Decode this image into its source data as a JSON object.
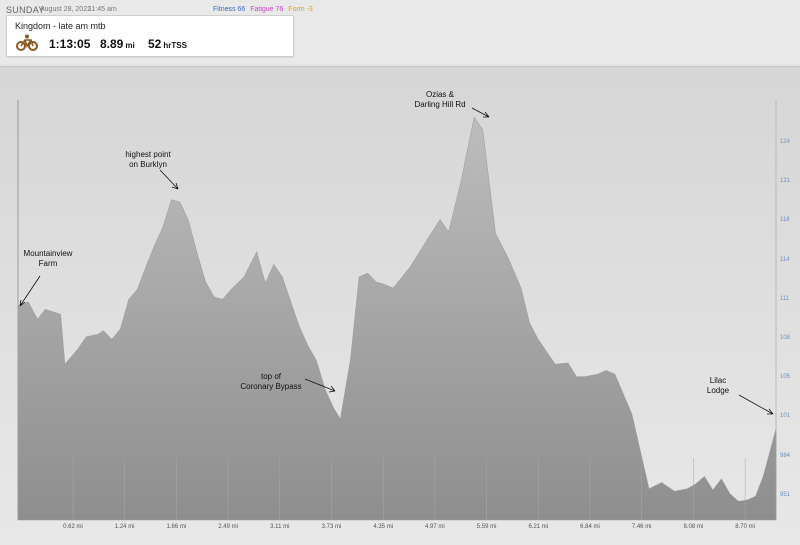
{
  "header": {
    "day": "SUNDAY",
    "date": "August 28, 2022",
    "time": "11:45 am",
    "fitness": "Fitness 66",
    "fatigue": "Fatigue 76",
    "form": "Form -3",
    "colors": {
      "fitness": "#3a6fb5",
      "fatigue": "#c447c4",
      "form": "#e89a1a"
    }
  },
  "workout": {
    "title": "Kingdom - late am mtb",
    "sport_icon": "mountain-bike-icon",
    "duration": "1:13:05",
    "distance": "8.89",
    "distance_unit": "mi",
    "tss": "52",
    "tss_unit": "hrTSS"
  },
  "chart_data": {
    "type": "area",
    "x_tick_labels": [
      "0.62 mi",
      "1.24 mi",
      "1.86 mi",
      "2.49 mi",
      "3.11 mi",
      "3.73 mi",
      "4.35 mi",
      "4.97 mi",
      "5.59 mi",
      "6.21 mi",
      "6.84 mi",
      "7.46 mi",
      "8.08 mi",
      "8.70 mi"
    ],
    "y_tick_labels": [
      "124",
      "121",
      "118",
      "114",
      "111",
      "108",
      "105",
      "101",
      "984",
      "951"
    ],
    "xlim": [
      0,
      8.89
    ],
    "ylim": [
      935,
      1272
    ],
    "grid": false,
    "x": [
      0,
      0.12,
      0.23,
      0.32,
      0.5,
      0.55,
      0.7,
      0.8,
      0.94,
      1.0,
      1.1,
      1.2,
      1.3,
      1.4,
      1.5,
      1.6,
      1.7,
      1.8,
      1.9,
      2.0,
      2.1,
      2.2,
      2.3,
      2.4,
      2.5,
      2.65,
      2.8,
      2.9,
      3.0,
      3.1,
      3.2,
      3.3,
      3.4,
      3.5,
      3.6,
      3.7,
      3.78,
      3.9,
      4.0,
      4.1,
      4.2,
      4.3,
      4.4,
      4.6,
      4.8,
      4.95,
      5.05,
      5.2,
      5.35,
      5.45,
      5.6,
      5.75,
      5.9,
      6.0,
      6.1,
      6.2,
      6.3,
      6.45,
      6.55,
      6.65,
      6.8,
      6.9,
      7.0,
      7.2,
      7.4,
      7.55,
      7.7,
      7.85,
      7.95,
      8.05,
      8.15,
      8.25,
      8.35,
      8.45,
      8.55,
      8.65,
      8.74,
      8.8,
      8.89
    ],
    "y": [
      1107,
      1110,
      1096,
      1104,
      1100,
      1060,
      1072,
      1082,
      1084,
      1087,
      1080,
      1088,
      1112,
      1120,
      1138,
      1155,
      1170,
      1192,
      1190,
      1175,
      1149,
      1126,
      1114,
      1112,
      1120,
      1130,
      1150,
      1125,
      1140,
      1130,
      1110,
      1090,
      1075,
      1063,
      1040,
      1025,
      1016,
      1064,
      1130,
      1133,
      1126,
      1124,
      1121,
      1138,
      1160,
      1176,
      1166,
      1208,
      1258,
      1248,
      1165,
      1145,
      1121,
      1093,
      1080,
      1070,
      1060,
      1061,
      1050,
      1050,
      1052,
      1055,
      1052,
      1020,
      960,
      965,
      958,
      960,
      964,
      970,
      959,
      968,
      956,
      950,
      951,
      954,
      970,
      985,
      1008
    ]
  },
  "annotations": [
    {
      "text": "Mountainview\nFarm"
    },
    {
      "text": "highest point\non Burklyn"
    },
    {
      "text": "top of\nCoronary Bypass"
    },
    {
      "text": "Ozias &\nDarling Hill Rd"
    },
    {
      "text": "Lilac\nLodge"
    }
  ]
}
